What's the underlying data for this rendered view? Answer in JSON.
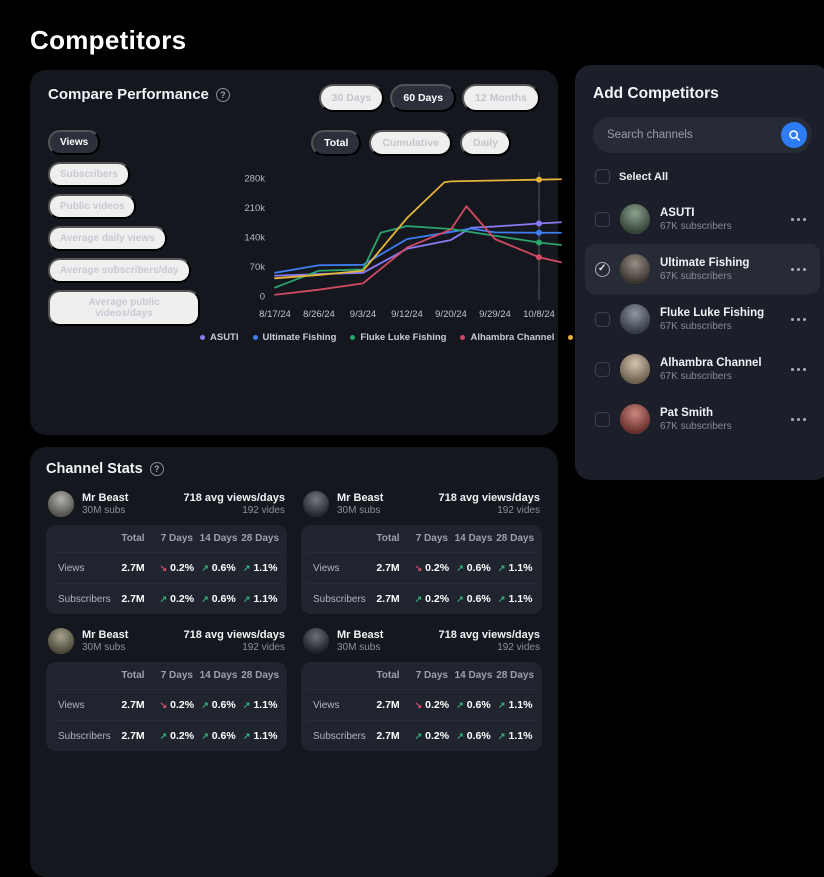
{
  "page": {
    "title": "Competitors"
  },
  "colors": {
    "background": "#000000",
    "card": "#15171f",
    "panel": "#1c1f29",
    "accent_blue": "#2e7bf6",
    "trend_up": "#35b07a",
    "trend_down": "#d5516b"
  },
  "compare": {
    "title": "Compare Performance",
    "range_tabs": [
      {
        "label": "30 Days",
        "state": ""
      },
      {
        "label": "60 Days",
        "state": "active"
      },
      {
        "label": "12 Months",
        "state": ""
      }
    ],
    "metrics": [
      {
        "label": "Views",
        "state": "active"
      },
      {
        "label": "Subscribers",
        "state": ""
      },
      {
        "label": "Public videos",
        "state": ""
      },
      {
        "label": "Average daily views",
        "state": ""
      },
      {
        "label": "Average subscribers/day",
        "state": ""
      },
      {
        "label": "Average public videos/days",
        "state": ""
      }
    ],
    "modes": [
      {
        "label": "Total",
        "state": "active"
      },
      {
        "label": "Cumulative",
        "state": ""
      },
      {
        "label": "Daily",
        "state": ""
      }
    ]
  },
  "chart_data": {
    "type": "line",
    "title": "Compare Performance - Views (60 Days, Total)",
    "x_labels": [
      "8/17/24",
      "8/26/24",
      "9/3/24",
      "9/12/24",
      "9/20/24",
      "9/29/24",
      "10/8/24"
    ],
    "y_ticks": [
      {
        "label": "280k",
        "v": 280
      },
      {
        "label": "210k",
        "v": 210
      },
      {
        "label": "140k",
        "v": 140
      },
      {
        "label": "70k",
        "v": 70
      },
      {
        "label": "0",
        "v": 0
      }
    ],
    "ylim": [
      0,
      290
    ],
    "unit": "views (thousands)",
    "grid": "dashed-horizontal",
    "legend_position": "bottom",
    "crosshair_index": 6,
    "series": [
      {
        "name": "ASUTI",
        "color": "#8a7bf5",
        "points": [
          [
            0,
            48
          ],
          [
            1,
            52
          ],
          [
            2,
            55
          ],
          [
            3,
            112
          ],
          [
            4,
            133
          ],
          [
            4.45,
            162
          ],
          [
            5,
            165
          ],
          [
            6,
            172
          ],
          [
            6.5,
            175
          ]
        ]
      },
      {
        "name": "Ultimate Fishing",
        "color": "#3e7df0",
        "points": [
          [
            0,
            55
          ],
          [
            1,
            73
          ],
          [
            2,
            74
          ],
          [
            3,
            135
          ],
          [
            4,
            152
          ],
          [
            4.45,
            160
          ],
          [
            5,
            151
          ],
          [
            6,
            150
          ],
          [
            6.5,
            150
          ]
        ]
      },
      {
        "name": "Fluke Luke Fishing",
        "color": "#2aa56c",
        "points": [
          [
            0,
            20
          ],
          [
            1,
            60
          ],
          [
            2,
            63
          ],
          [
            2.4,
            150
          ],
          [
            3,
            166
          ],
          [
            4,
            159
          ],
          [
            5,
            143
          ],
          [
            6,
            127
          ],
          [
            6.5,
            121
          ]
        ]
      },
      {
        "name": "Alhambra Channel",
        "color": "#d04a63",
        "points": [
          [
            0,
            3
          ],
          [
            1,
            15
          ],
          [
            2,
            30
          ],
          [
            3,
            115
          ],
          [
            4,
            158
          ],
          [
            4.35,
            213
          ],
          [
            5,
            135
          ],
          [
            6,
            92
          ],
          [
            6.5,
            80
          ]
        ]
      },
      {
        "name": "Pat Smith",
        "color": "#e5b53a",
        "points": [
          [
            0,
            42
          ],
          [
            1,
            50
          ],
          [
            2,
            60
          ],
          [
            3,
            185
          ],
          [
            3.85,
            270
          ],
          [
            4,
            272
          ],
          [
            5,
            274
          ],
          [
            6,
            276
          ],
          [
            6.5,
            277
          ]
        ]
      }
    ]
  },
  "add_competitors": {
    "title": "Add Competitors",
    "search_placeholder": "Search channels",
    "select_all_label": "Select All",
    "channels": [
      {
        "name": "ASUTI",
        "subscribers": "67K subscribers",
        "state": "",
        "avatar_color": "#5d7a5f"
      },
      {
        "name": "Ultimate Fishing",
        "subscribers": "67K subscribers",
        "state": "checked",
        "avatar_color": "#6a5f52"
      },
      {
        "name": "Fluke Luke Fishing",
        "subscribers": "67K subscribers",
        "state": "",
        "avatar_color": "#5f6a7a"
      },
      {
        "name": "Alhambra Channel",
        "subscribers": "67K subscribers",
        "state": "",
        "avatar_color": "#c2aa8b"
      },
      {
        "name": "Pat Smith",
        "subscribers": "67K subscribers",
        "state": "",
        "avatar_color": "#b8544a"
      }
    ]
  },
  "channel_stats": {
    "title": "Channel Stats",
    "cards": [
      {
        "name": "Mr Beast",
        "subs": "30M subs",
        "avg_views": "718 avg views/days",
        "videos": "192 vides",
        "avatar_color": "#96938b",
        "table": {
          "headers": [
            "Total",
            "7 Days",
            "14 Days",
            "28 Days"
          ],
          "rows": [
            {
              "label": "Views",
              "total": "2.7M",
              "trends": [
                {
                  "arrow": "↘",
                  "dir": "down",
                  "value": "0.2%"
                },
                {
                  "arrow": "↗",
                  "dir": "up",
                  "value": "0.6%"
                },
                {
                  "arrow": "↗",
                  "dir": "up",
                  "value": "1.1%"
                }
              ]
            },
            {
              "label": "Subscribers",
              "total": "2.7M",
              "trends": [
                {
                  "arrow": "↗",
                  "dir": "up",
                  "value": "0.2%"
                },
                {
                  "arrow": "↗",
                  "dir": "up",
                  "value": "0.6%"
                },
                {
                  "arrow": "↗",
                  "dir": "up",
                  "value": "1.1%"
                }
              ]
            }
          ]
        }
      },
      {
        "name": "Mr Beast",
        "subs": "30M subs",
        "avg_views": "718 avg views/days",
        "videos": "192 vides",
        "avatar_color": "#3f444f",
        "table": {
          "headers": [
            "Total",
            "7 Days",
            "14 Days",
            "28 Days"
          ],
          "rows": [
            {
              "label": "Views",
              "total": "2.7M",
              "trends": [
                {
                  "arrow": "↘",
                  "dir": "down",
                  "value": "0.2%"
                },
                {
                  "arrow": "↗",
                  "dir": "up",
                  "value": "0.6%"
                },
                {
                  "arrow": "↗",
                  "dir": "up",
                  "value": "1.1%"
                }
              ]
            },
            {
              "label": "Subscribers",
              "total": "2.7M",
              "trends": [
                {
                  "arrow": "↗",
                  "dir": "up",
                  "value": "0.2%"
                },
                {
                  "arrow": "↗",
                  "dir": "up",
                  "value": "0.6%"
                },
                {
                  "arrow": "↗",
                  "dir": "up",
                  "value": "1.1%"
                }
              ]
            }
          ]
        }
      },
      {
        "name": "Mr Beast",
        "subs": "30M subs",
        "avg_views": "718 avg views/days",
        "videos": "192 vides",
        "avatar_color": "#857f63",
        "table": {
          "headers": [
            "Total",
            "7 Days",
            "14 Days",
            "28 Days"
          ],
          "rows": [
            {
              "label": "Views",
              "total": "2.7M",
              "trends": [
                {
                  "arrow": "↘",
                  "dir": "down",
                  "value": "0.2%"
                },
                {
                  "arrow": "↗",
                  "dir": "up",
                  "value": "0.6%"
                },
                {
                  "arrow": "↗",
                  "dir": "up",
                  "value": "1.1%"
                }
              ]
            },
            {
              "label": "Subscribers",
              "total": "2.7M",
              "trends": [
                {
                  "arrow": "↗",
                  "dir": "up",
                  "value": "0.2%"
                },
                {
                  "arrow": "↗",
                  "dir": "up",
                  "value": "0.6%"
                },
                {
                  "arrow": "↗",
                  "dir": "up",
                  "value": "1.1%"
                }
              ]
            }
          ]
        }
      },
      {
        "name": "Mr Beast",
        "subs": "30M subs",
        "avg_views": "718 avg views/days",
        "videos": "192 vides",
        "avatar_color": "#343842",
        "table": {
          "headers": [
            "Total",
            "7 Days",
            "14 Days",
            "28 Days"
          ],
          "rows": [
            {
              "label": "Views",
              "total": "2.7M",
              "trends": [
                {
                  "arrow": "↘",
                  "dir": "down",
                  "value": "0.2%"
                },
                {
                  "arrow": "↗",
                  "dir": "up",
                  "value": "0.6%"
                },
                {
                  "arrow": "↗",
                  "dir": "up",
                  "value": "1.1%"
                }
              ]
            },
            {
              "label": "Subscribers",
              "total": "2.7M",
              "trends": [
                {
                  "arrow": "↗",
                  "dir": "up",
                  "value": "0.2%"
                },
                {
                  "arrow": "↗",
                  "dir": "up",
                  "value": "0.6%"
                },
                {
                  "arrow": "↗",
                  "dir": "up",
                  "value": "1.1%"
                }
              ]
            }
          ]
        }
      }
    ]
  }
}
